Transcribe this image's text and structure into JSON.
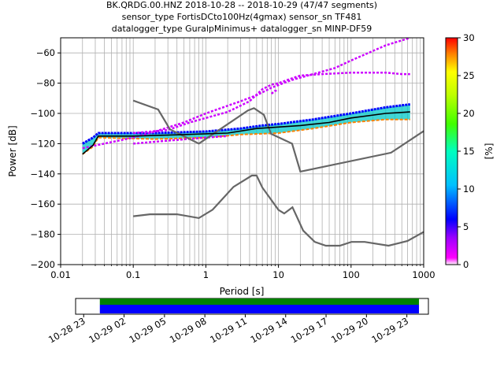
{
  "title": {
    "line1": "BK.QRDG.00.HNZ   2018-10-28 -- 2018-10-29  (47/47 segments)",
    "line2": "sensor_type FortisDCto100Hz(4gmax) sensor_sn TF481",
    "line3": "datalogger_type GuralpMinimus+ datalogger_sn MINP-DF59"
  },
  "chart_data": {
    "type": "heatmap",
    "subtype": "probabilistic-power-spectral-density",
    "xlabel": "Period [s]",
    "ylabel": "Power [dB]",
    "x_scale": "log",
    "xlim": [
      0.01,
      1000
    ],
    "ylim": [
      -200,
      -50
    ],
    "x_ticks": [
      {
        "value": 0.01,
        "label": "0.01"
      },
      {
        "value": 0.1,
        "label": "0.1"
      },
      {
        "value": 1,
        "label": "1"
      },
      {
        "value": 10,
        "label": "10"
      },
      {
        "value": 100,
        "label": "100"
      },
      {
        "value": 1000,
        "label": "1000"
      }
    ],
    "y_ticks": [
      {
        "value": -60,
        "label": "−60"
      },
      {
        "value": -80,
        "label": "−80"
      },
      {
        "value": -100,
        "label": "−100"
      },
      {
        "value": -120,
        "label": "−120"
      },
      {
        "value": -140,
        "label": "−140"
      },
      {
        "value": -160,
        "label": "−160"
      },
      {
        "value": -180,
        "label": "−180"
      },
      {
        "value": -200,
        "label": "−200"
      }
    ],
    "grid": true,
    "vertical_grid_periods": [
      0.02,
      0.03,
      0.04,
      0.05,
      0.06,
      0.07,
      0.08,
      0.09,
      0.2,
      0.3,
      0.4,
      0.5,
      0.6,
      0.7,
      0.8,
      0.9,
      2,
      3,
      4,
      5,
      6,
      7,
      8,
      9,
      20,
      30,
      40,
      50,
      60,
      70,
      80,
      90,
      200,
      300,
      400,
      500,
      600,
      700,
      800,
      900
    ],
    "colorbar": {
      "label": "[%]",
      "range": [
        0,
        30
      ],
      "ticks": [
        {
          "value": 0,
          "label": "0"
        },
        {
          "value": 5,
          "label": "5"
        },
        {
          "value": 10,
          "label": "10"
        },
        {
          "value": 15,
          "label": "15"
        },
        {
          "value": 20,
          "label": "20"
        },
        {
          "value": 25,
          "label": "25"
        },
        {
          "value": 30,
          "label": "30"
        }
      ],
      "colors": [
        "#ffffff",
        "#ff00ff",
        "#7f00ff",
        "#0000ff",
        "#00bfff",
        "#00ffbf",
        "#40ff00",
        "#bfff00",
        "#ffff00",
        "#ff8000",
        "#ff0000"
      ]
    },
    "noise_models": [
      {
        "name": "NHNM",
        "color": "#666666",
        "points": [
          [
            0.1,
            -91.5
          ],
          [
            0.22,
            -97.4
          ],
          [
            0.32,
            -110.5
          ],
          [
            0.8,
            -120
          ],
          [
            3.8,
            -98
          ],
          [
            4.6,
            -96.5
          ],
          [
            6.3,
            -101
          ],
          [
            7.9,
            -113.5
          ],
          [
            15.4,
            -120
          ],
          [
            20,
            -138.5
          ],
          [
            354.8,
            -126
          ],
          [
            10000,
            -80
          ]
        ]
      },
      {
        "name": "NLNM",
        "color": "#666666",
        "points": [
          [
            0.1,
            -168
          ],
          [
            0.17,
            -166.7
          ],
          [
            0.4,
            -166.7
          ],
          [
            0.8,
            -169.2
          ],
          [
            1.24,
            -163.7
          ],
          [
            2.4,
            -148.6
          ],
          [
            4.3,
            -141.1
          ],
          [
            5,
            -141.1
          ],
          [
            6,
            -149
          ],
          [
            10,
            -163.8
          ],
          [
            12,
            -166.2
          ],
          [
            15.6,
            -162.1
          ],
          [
            21.9,
            -177.5
          ],
          [
            31.6,
            -185
          ],
          [
            45,
            -187.5
          ],
          [
            70,
            -187.5
          ],
          [
            101,
            -185
          ],
          [
            154,
            -185
          ],
          [
            328,
            -187.5
          ],
          [
            600,
            -184.4
          ],
          [
            10000,
            -151.5
          ]
        ]
      }
    ],
    "mean_curve": {
      "color": "#000000",
      "points": [
        [
          0.02,
          -127
        ],
        [
          0.028,
          -121
        ],
        [
          0.033,
          -115
        ],
        [
          0.1,
          -115
        ],
        [
          0.5,
          -114
        ],
        [
          1,
          -113.5
        ],
        [
          2,
          -113
        ],
        [
          5,
          -110
        ],
        [
          10,
          -109
        ],
        [
          20,
          -108
        ],
        [
          50,
          -106
        ],
        [
          100,
          -103
        ],
        [
          300,
          -100
        ],
        [
          650,
          -99
        ]
      ]
    },
    "density_band": {
      "lower": [
        [
          0.02,
          -127
        ],
        [
          0.028,
          -122
        ],
        [
          0.033,
          -116
        ],
        [
          0.2,
          -117
        ],
        [
          1,
          -116
        ],
        [
          3,
          -114
        ],
        [
          10,
          -113
        ],
        [
          30,
          -110
        ],
        [
          100,
          -106
        ],
        [
          300,
          -104
        ],
        [
          650,
          -104
        ]
      ],
      "upper": [
        [
          0.02,
          -120
        ],
        [
          0.028,
          -116
        ],
        [
          0.033,
          -113
        ],
        [
          0.2,
          -113
        ],
        [
          1,
          -112
        ],
        [
          3,
          -110
        ],
        [
          6,
          -108
        ],
        [
          10,
          -107
        ],
        [
          30,
          -104
        ],
        [
          100,
          -100
        ],
        [
          300,
          -96
        ],
        [
          650,
          -94
        ]
      ]
    },
    "outlier_traces": [
      {
        "color": "#cc00ff",
        "points": [
          [
            0.02,
            -123
          ],
          [
            0.05,
            -119
          ],
          [
            0.1,
            -116
          ],
          [
            0.2,
            -112
          ],
          [
            0.5,
            -106
          ],
          [
            1,
            -100
          ],
          [
            3,
            -92
          ],
          [
            5,
            -88
          ],
          [
            8,
            -83
          ],
          [
            15,
            -78
          ],
          [
            30,
            -74
          ],
          [
            60,
            -70
          ],
          [
            100,
            -65
          ],
          [
            300,
            -55
          ],
          [
            650,
            -50
          ]
        ]
      },
      {
        "color": "#cc00ff",
        "points": [
          [
            0.1,
            -113
          ],
          [
            0.3,
            -111
          ],
          [
            0.6,
            -106
          ],
          [
            1,
            -103
          ],
          [
            2,
            -99
          ],
          [
            4,
            -92
          ],
          [
            6,
            -84
          ],
          [
            8,
            -81
          ],
          [
            10,
            -80
          ],
          [
            15,
            -77
          ],
          [
            20,
            -75
          ],
          [
            40,
            -74
          ],
          [
            100,
            -73
          ],
          [
            300,
            -73
          ],
          [
            500,
            -74
          ],
          [
            650,
            -74
          ]
        ]
      },
      {
        "color": "#cc00ff",
        "points": [
          [
            8,
            -87
          ],
          [
            9,
            -85
          ],
          [
            10,
            -85
          ]
        ]
      },
      {
        "color": "#cc00ff",
        "points": [
          [
            0.1,
            -120
          ],
          [
            0.3,
            -118
          ],
          [
            1,
            -116
          ],
          [
            2,
            -115
          ]
        ]
      }
    ]
  },
  "timeline": {
    "tick_labels": [
      "10-28 23",
      "10-29 02",
      "10-29 05",
      "10-29 08",
      "10-29 11",
      "10-29 14",
      "10-29 17",
      "10-29 20",
      "10-29 23"
    ],
    "tick_hours": [
      -1,
      2,
      5,
      8,
      11,
      14,
      17,
      20,
      23
    ],
    "range_hours": [
      -1.6,
      24.6
    ],
    "coverage_hours": [
      0.2,
      23.9
    ],
    "colors": {
      "gaps": "#008000",
      "data": "#0000ff"
    }
  }
}
